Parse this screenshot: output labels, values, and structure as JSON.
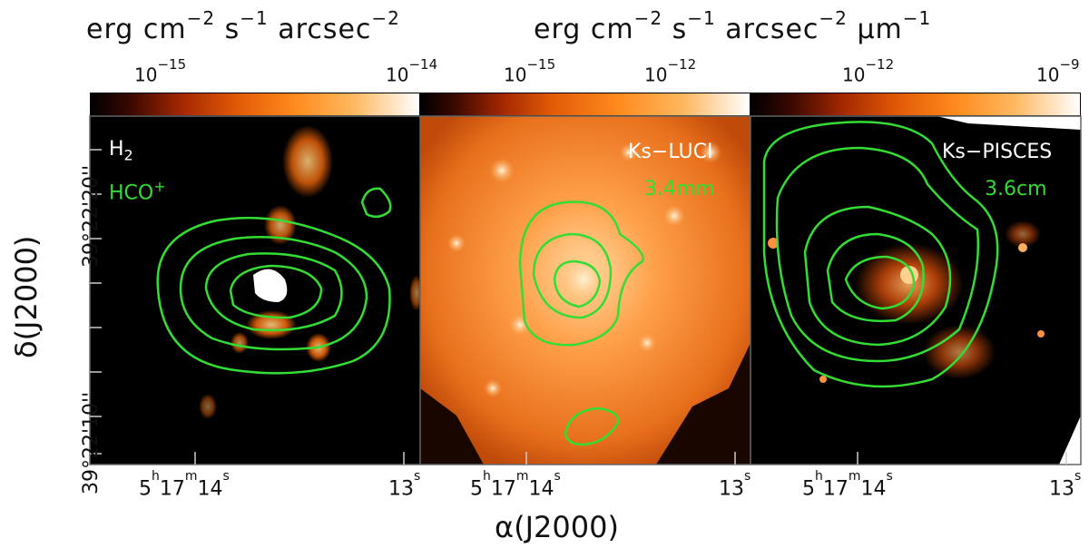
{
  "units": {
    "left": [
      "erg",
      "cm",
      "−2",
      "s",
      "−1",
      "arcsec",
      "−2"
    ],
    "right": [
      "erg",
      "cm",
      "−2",
      "s",
      "−1",
      "arcsec",
      "−2",
      "μm",
      "−1"
    ]
  },
  "colorbars": [
    {
      "ticks": [
        [
          "10",
          "−15"
        ],
        [
          "10",
          "−14"
        ]
      ]
    },
    {
      "ticks": [
        [
          "10",
          "−15"
        ],
        [
          "10",
          "−12"
        ]
      ]
    },
    {
      "ticks": [
        [
          "10",
          "−12"
        ],
        [
          "10",
          "−9"
        ]
      ]
    }
  ],
  "panels": [
    {
      "label_top": "H",
      "label_top_sub": "2",
      "label_2": "HCO",
      "label_2_sup": "+"
    },
    {
      "label_top": "Ks−LUCI",
      "label_2": "3.4mm"
    },
    {
      "label_top": "Ks−PISCES",
      "label_2": "3.6cm"
    }
  ],
  "ra_labels": [
    {
      "h": "5",
      "h_u": "h",
      "m": "17",
      "m_u": "m",
      "s": "14",
      "s_u": "s",
      "end": "13",
      "end_u": "s"
    },
    {
      "h": "5",
      "h_u": "h",
      "m": "17",
      "m_u": "m",
      "s": "14",
      "s_u": "s",
      "end": "13",
      "end_u": "s"
    },
    {
      "h": "5",
      "h_u": "h",
      "m": "17",
      "m_u": "m",
      "s": "14",
      "s_u": "s",
      "end": "13",
      "end_u": "s"
    }
  ],
  "dec_labels": [
    "39°22'20''",
    "39°22'10''"
  ],
  "xaxis_label": "α(J2000)",
  "yaxis_label": "δ(J2000)",
  "colors": {
    "contour": "#33dd33",
    "colormap_low": "#000000",
    "colormap_mid": "#ff7a10",
    "colormap_high": "#ffffff"
  }
}
